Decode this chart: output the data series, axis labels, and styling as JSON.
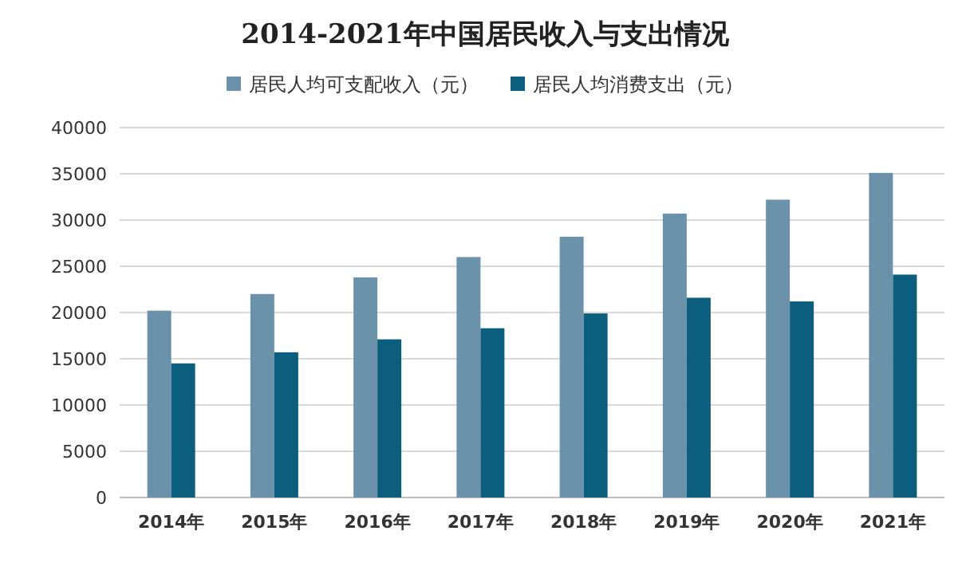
{
  "chart_data": {
    "type": "bar",
    "title": "2014-2021年中国居民收入与支出情况",
    "categories": [
      "2014年",
      "2015年",
      "2016年",
      "2017年",
      "2018年",
      "2019年",
      "2020年",
      "2021年"
    ],
    "series": [
      {
        "name": "居民人均可支配收入（元）",
        "color": "#6a93ab",
        "values": [
          20200,
          22000,
          23800,
          26000,
          28200,
          30700,
          32200,
          35100
        ]
      },
      {
        "name": "居民人均消费支出（元）",
        "color": "#0b5e7d",
        "values": [
          14500,
          15700,
          17100,
          18300,
          19900,
          21600,
          21200,
          24100
        ]
      }
    ],
    "ylim": [
      0,
      40000
    ],
    "yticks": [
      0,
      5000,
      10000,
      15000,
      20000,
      25000,
      30000,
      35000,
      40000
    ],
    "grid": "y",
    "legend": "top"
  }
}
